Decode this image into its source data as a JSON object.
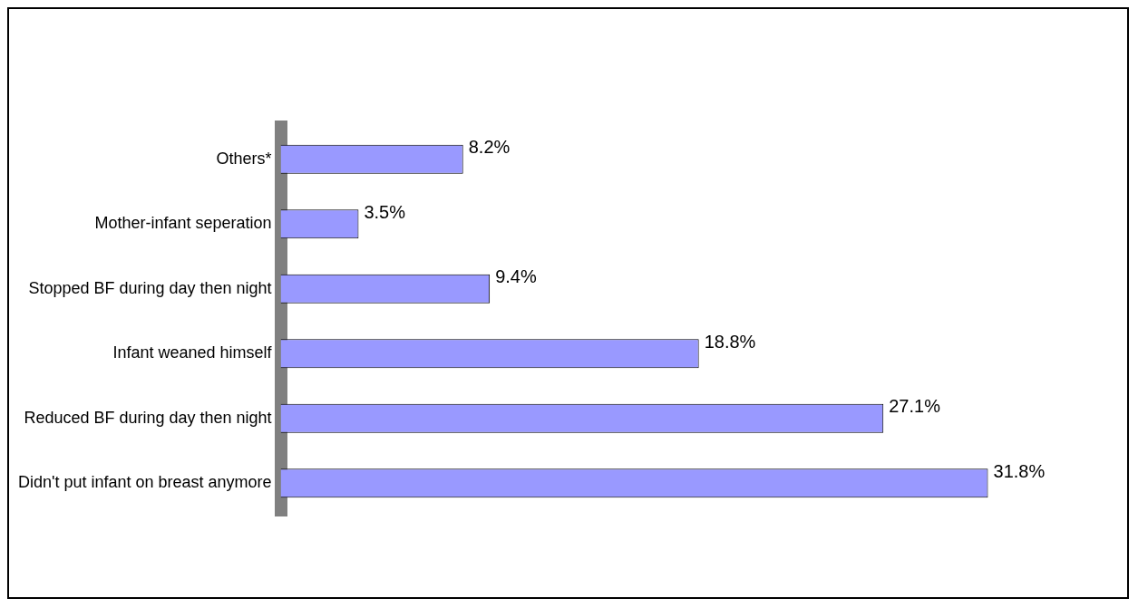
{
  "chart_data": {
    "type": "bar",
    "orientation": "horizontal",
    "categories": [
      "Others*",
      "Mother-infant seperation",
      "Stopped BF during day then night",
      "Infant weaned himself",
      "Reduced BF during day then night",
      "Didn't put infant on breast anymore"
    ],
    "values": [
      8.2,
      3.5,
      9.4,
      18.8,
      27.1,
      31.8
    ],
    "value_labels": [
      "8.2%",
      "3.5%",
      "9.4%",
      "18.8%",
      "27.1%",
      "31.8%"
    ],
    "color": "#9999ff",
    "legend": false
  }
}
